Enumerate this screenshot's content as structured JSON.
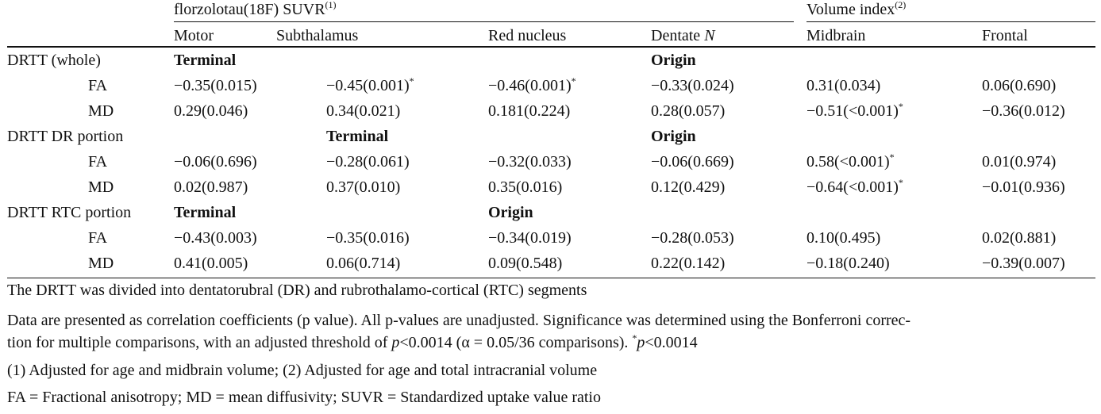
{
  "header": {
    "group1": "florzolotau(18F) SUVR",
    "group1_sup": "(1)",
    "group2": "Volume index",
    "group2_sup": "(2)",
    "columns": [
      "Motor",
      "Subthalamus",
      "Red nucleus",
      "Dentate",
      "Midbrain",
      "Frontal"
    ],
    "dentate_suffix": "N"
  },
  "sections": [
    {
      "label": "DRTT (whole)",
      "markers": [
        "Terminal",
        "",
        "",
        "Origin",
        "",
        ""
      ],
      "rows": [
        {
          "label": "FA",
          "cells": [
            "−0.35(0.015)",
            "−0.45(0.001)",
            "−0.46(0.001)",
            "−0.33(0.024)",
            "0.31(0.034)",
            "0.06(0.690)"
          ],
          "sig": [
            false,
            true,
            true,
            false,
            false,
            false
          ]
        },
        {
          "label": "MD",
          "cells": [
            "0.29(0.046)",
            "0.34(0.021)",
            "0.181(0.224)",
            "0.28(0.057)",
            "−0.51(<0.001)",
            "−0.36(0.012)"
          ],
          "sig": [
            false,
            false,
            false,
            false,
            true,
            false
          ]
        }
      ]
    },
    {
      "label": "DRTT DR portion",
      "markers": [
        "",
        "Terminal",
        "",
        "Origin",
        "",
        ""
      ],
      "rows": [
        {
          "label": "FA",
          "cells": [
            "−0.06(0.696)",
            "−0.28(0.061)",
            "−0.32(0.033)",
            "−0.06(0.669)",
            "0.58(<0.001)",
            "0.01(0.974)"
          ],
          "sig": [
            false,
            false,
            false,
            false,
            true,
            false
          ]
        },
        {
          "label": "MD",
          "cells": [
            "0.02(0.987)",
            "0.37(0.010)",
            "0.35(0.016)",
            "0.12(0.429)",
            "−0.64(<0.001)",
            "−0.01(0.936)"
          ],
          "sig": [
            false,
            false,
            false,
            false,
            true,
            false
          ]
        }
      ]
    },
    {
      "label": "DRTT RTC portion",
      "markers": [
        "Terminal",
        "",
        "Origin",
        "",
        "",
        ""
      ],
      "rows": [
        {
          "label": "FA",
          "cells": [
            "−0.43(0.003)",
            "−0.35(0.016)",
            "−0.34(0.019)",
            "−0.28(0.053)",
            "0.10(0.495)",
            "0.02(0.881)"
          ],
          "sig": [
            false,
            false,
            false,
            false,
            false,
            false
          ]
        },
        {
          "label": "MD",
          "cells": [
            "0.41(0.005)",
            "0.06(0.714)",
            "0.09(0.548)",
            "0.22(0.142)",
            "−0.18(0.240)",
            "−0.39(0.007)"
          ],
          "sig": [
            false,
            false,
            false,
            false,
            false,
            false
          ]
        }
      ]
    }
  ],
  "sig_marker": "*",
  "notes": {
    "n1": "The DRTT was divided into dentatorubral (DR) and rubrothalamo-cortical (RTC) segments",
    "n2_a": "Data are presented as correlation coefficients (p value). All p-values are unadjusted. Significance was determined using the Bonferroni correc-",
    "n2_b1": "tion for multiple comparisons, with an adjusted threshold of ",
    "n2_b_p1": "p",
    "n2_b2": "<0.0014 (α = 0.05/36 comparisons). ",
    "n2_b_star": "*",
    "n2_b_p2": "p",
    "n2_b3": "<0.0014",
    "n3": "(1) Adjusted for age and midbrain volume; (2) Adjusted for age and total intracranial volume",
    "n4": "FA = Fractional anisotropy; MD = mean diffusivity; SUVR = Standardized uptake value ratio"
  }
}
